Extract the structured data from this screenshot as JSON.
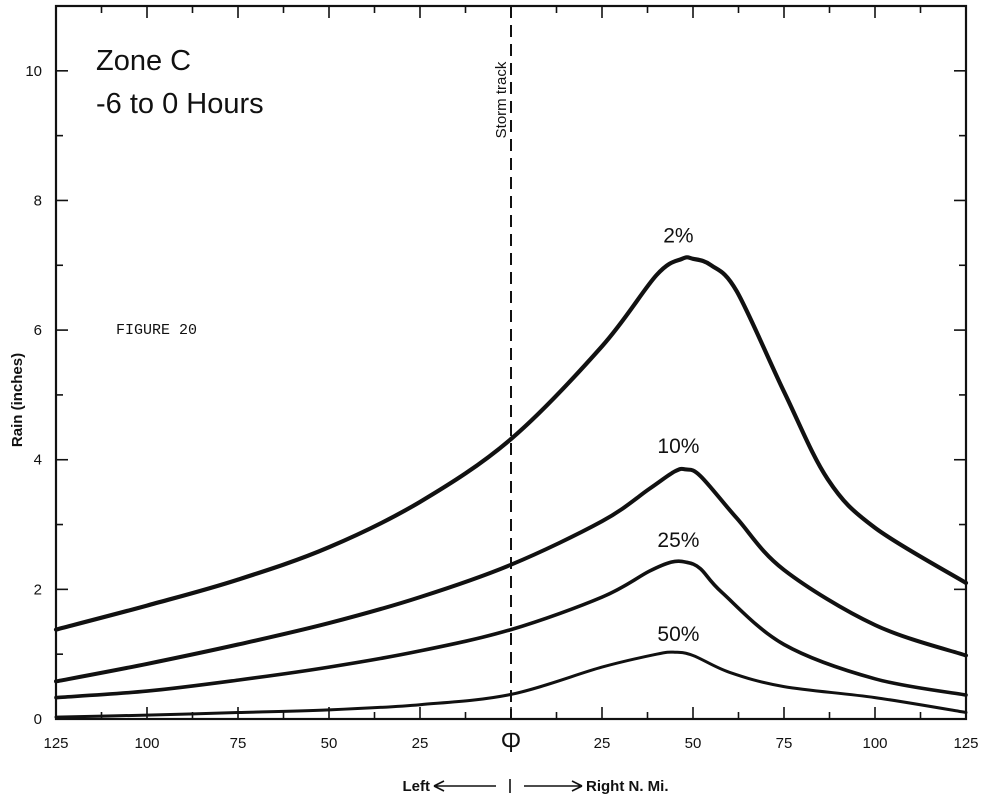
{
  "chart_data": {
    "type": "line",
    "title": [
      "Zone C",
      "-6 to 0 Hours"
    ],
    "figure_label": "FIGURE 20",
    "ylabel": "Rain (inches)",
    "xlabel_left": "Left",
    "xlabel_right": "Right  N. Mi.",
    "storm_track_label": "Storm track",
    "storm_track_x": 0,
    "center_mark": "Ⴔ",
    "xlim": [
      -125,
      125
    ],
    "ylim": [
      0,
      11
    ],
    "x_ticks": [
      -125,
      -100,
      -75,
      -50,
      -25,
      25,
      50,
      75,
      100,
      125
    ],
    "x_tick_labels": [
      "125",
      "100",
      "75",
      "50",
      "25",
      "25",
      "50",
      "75",
      "100",
      "125"
    ],
    "y_ticks": [
      0,
      2,
      4,
      6,
      8,
      10
    ],
    "y_tick_labels": [
      "0",
      "2",
      "4",
      "6",
      "8",
      "10"
    ],
    "grid": false,
    "series": [
      {
        "name": "2%",
        "label_at": [
          46,
          7.35
        ],
        "x": [
          -125,
          -100,
          -75,
          -50,
          -25,
          0,
          25,
          40,
          47,
          50,
          55,
          62,
          75,
          87,
          100,
          125
        ],
        "y": [
          1.38,
          1.75,
          2.15,
          2.65,
          3.35,
          4.32,
          5.75,
          6.85,
          7.1,
          7.1,
          7.0,
          6.6,
          5.05,
          3.7,
          2.95,
          2.1
        ]
      },
      {
        "name": "10%",
        "label_at": [
          46,
          4.1
        ],
        "x": [
          -125,
          -100,
          -75,
          -50,
          -25,
          0,
          25,
          38,
          45,
          48,
          52,
          62,
          75,
          100,
          125
        ],
        "y": [
          0.58,
          0.85,
          1.15,
          1.48,
          1.88,
          2.38,
          3.05,
          3.55,
          3.82,
          3.85,
          3.75,
          3.1,
          2.3,
          1.45,
          0.98
        ]
      },
      {
        "name": "25%",
        "label_at": [
          46,
          2.65
        ],
        "x": [
          -125,
          -100,
          -75,
          -50,
          -25,
          0,
          25,
          38,
          44,
          48,
          52,
          58,
          75,
          100,
          125
        ],
        "y": [
          0.33,
          0.43,
          0.6,
          0.8,
          1.05,
          1.38,
          1.88,
          2.28,
          2.42,
          2.42,
          2.32,
          1.95,
          1.15,
          0.62,
          0.37
        ]
      },
      {
        "name": "50%",
        "label_at": [
          46,
          1.2
        ],
        "x": [
          -125,
          -100,
          -75,
          -50,
          -25,
          0,
          25,
          40,
          45,
          50,
          60,
          75,
          100,
          125
        ],
        "y": [
          0.03,
          0.06,
          0.1,
          0.14,
          0.22,
          0.38,
          0.8,
          1.0,
          1.03,
          0.98,
          0.72,
          0.5,
          0.33,
          0.1
        ]
      }
    ]
  }
}
